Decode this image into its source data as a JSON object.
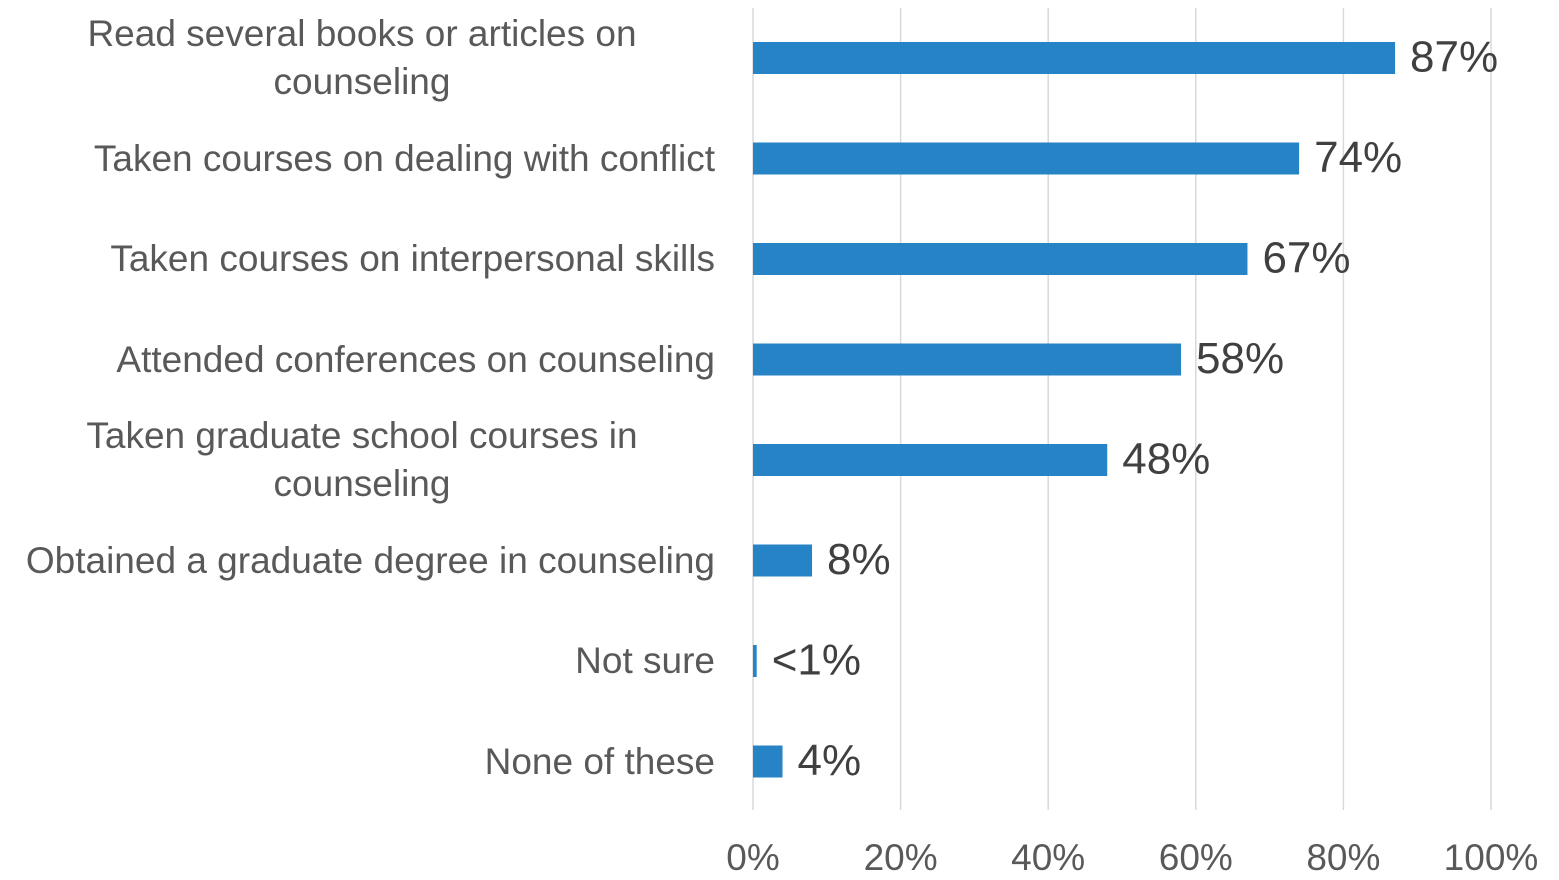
{
  "chart_data": {
    "type": "bar",
    "orientation": "horizontal",
    "categories": [
      "Read several books or articles on counseling",
      "Taken courses on dealing with conflict",
      "Taken courses on interpersonal skills",
      "Attended conferences on counseling",
      "Taken graduate school courses in counseling",
      "Obtained a graduate degree in counseling",
      "Not sure",
      "None of these"
    ],
    "values": [
      87,
      74,
      67,
      58,
      48,
      8,
      0.5,
      4
    ],
    "value_labels": [
      "87%",
      "74%",
      "67%",
      "58%",
      "48%",
      "8%",
      "<1%",
      "4%"
    ],
    "color": "#2683c6",
    "xlim": [
      0,
      100
    ],
    "xticks": [
      {
        "value": 0,
        "label": "0%"
      },
      {
        "value": 20,
        "label": "20%"
      },
      {
        "value": 40,
        "label": "40%"
      },
      {
        "value": 60,
        "label": "60%"
      },
      {
        "value": 80,
        "label": "80%"
      },
      {
        "value": 100,
        "label": "100%"
      }
    ],
    "grid": true
  }
}
